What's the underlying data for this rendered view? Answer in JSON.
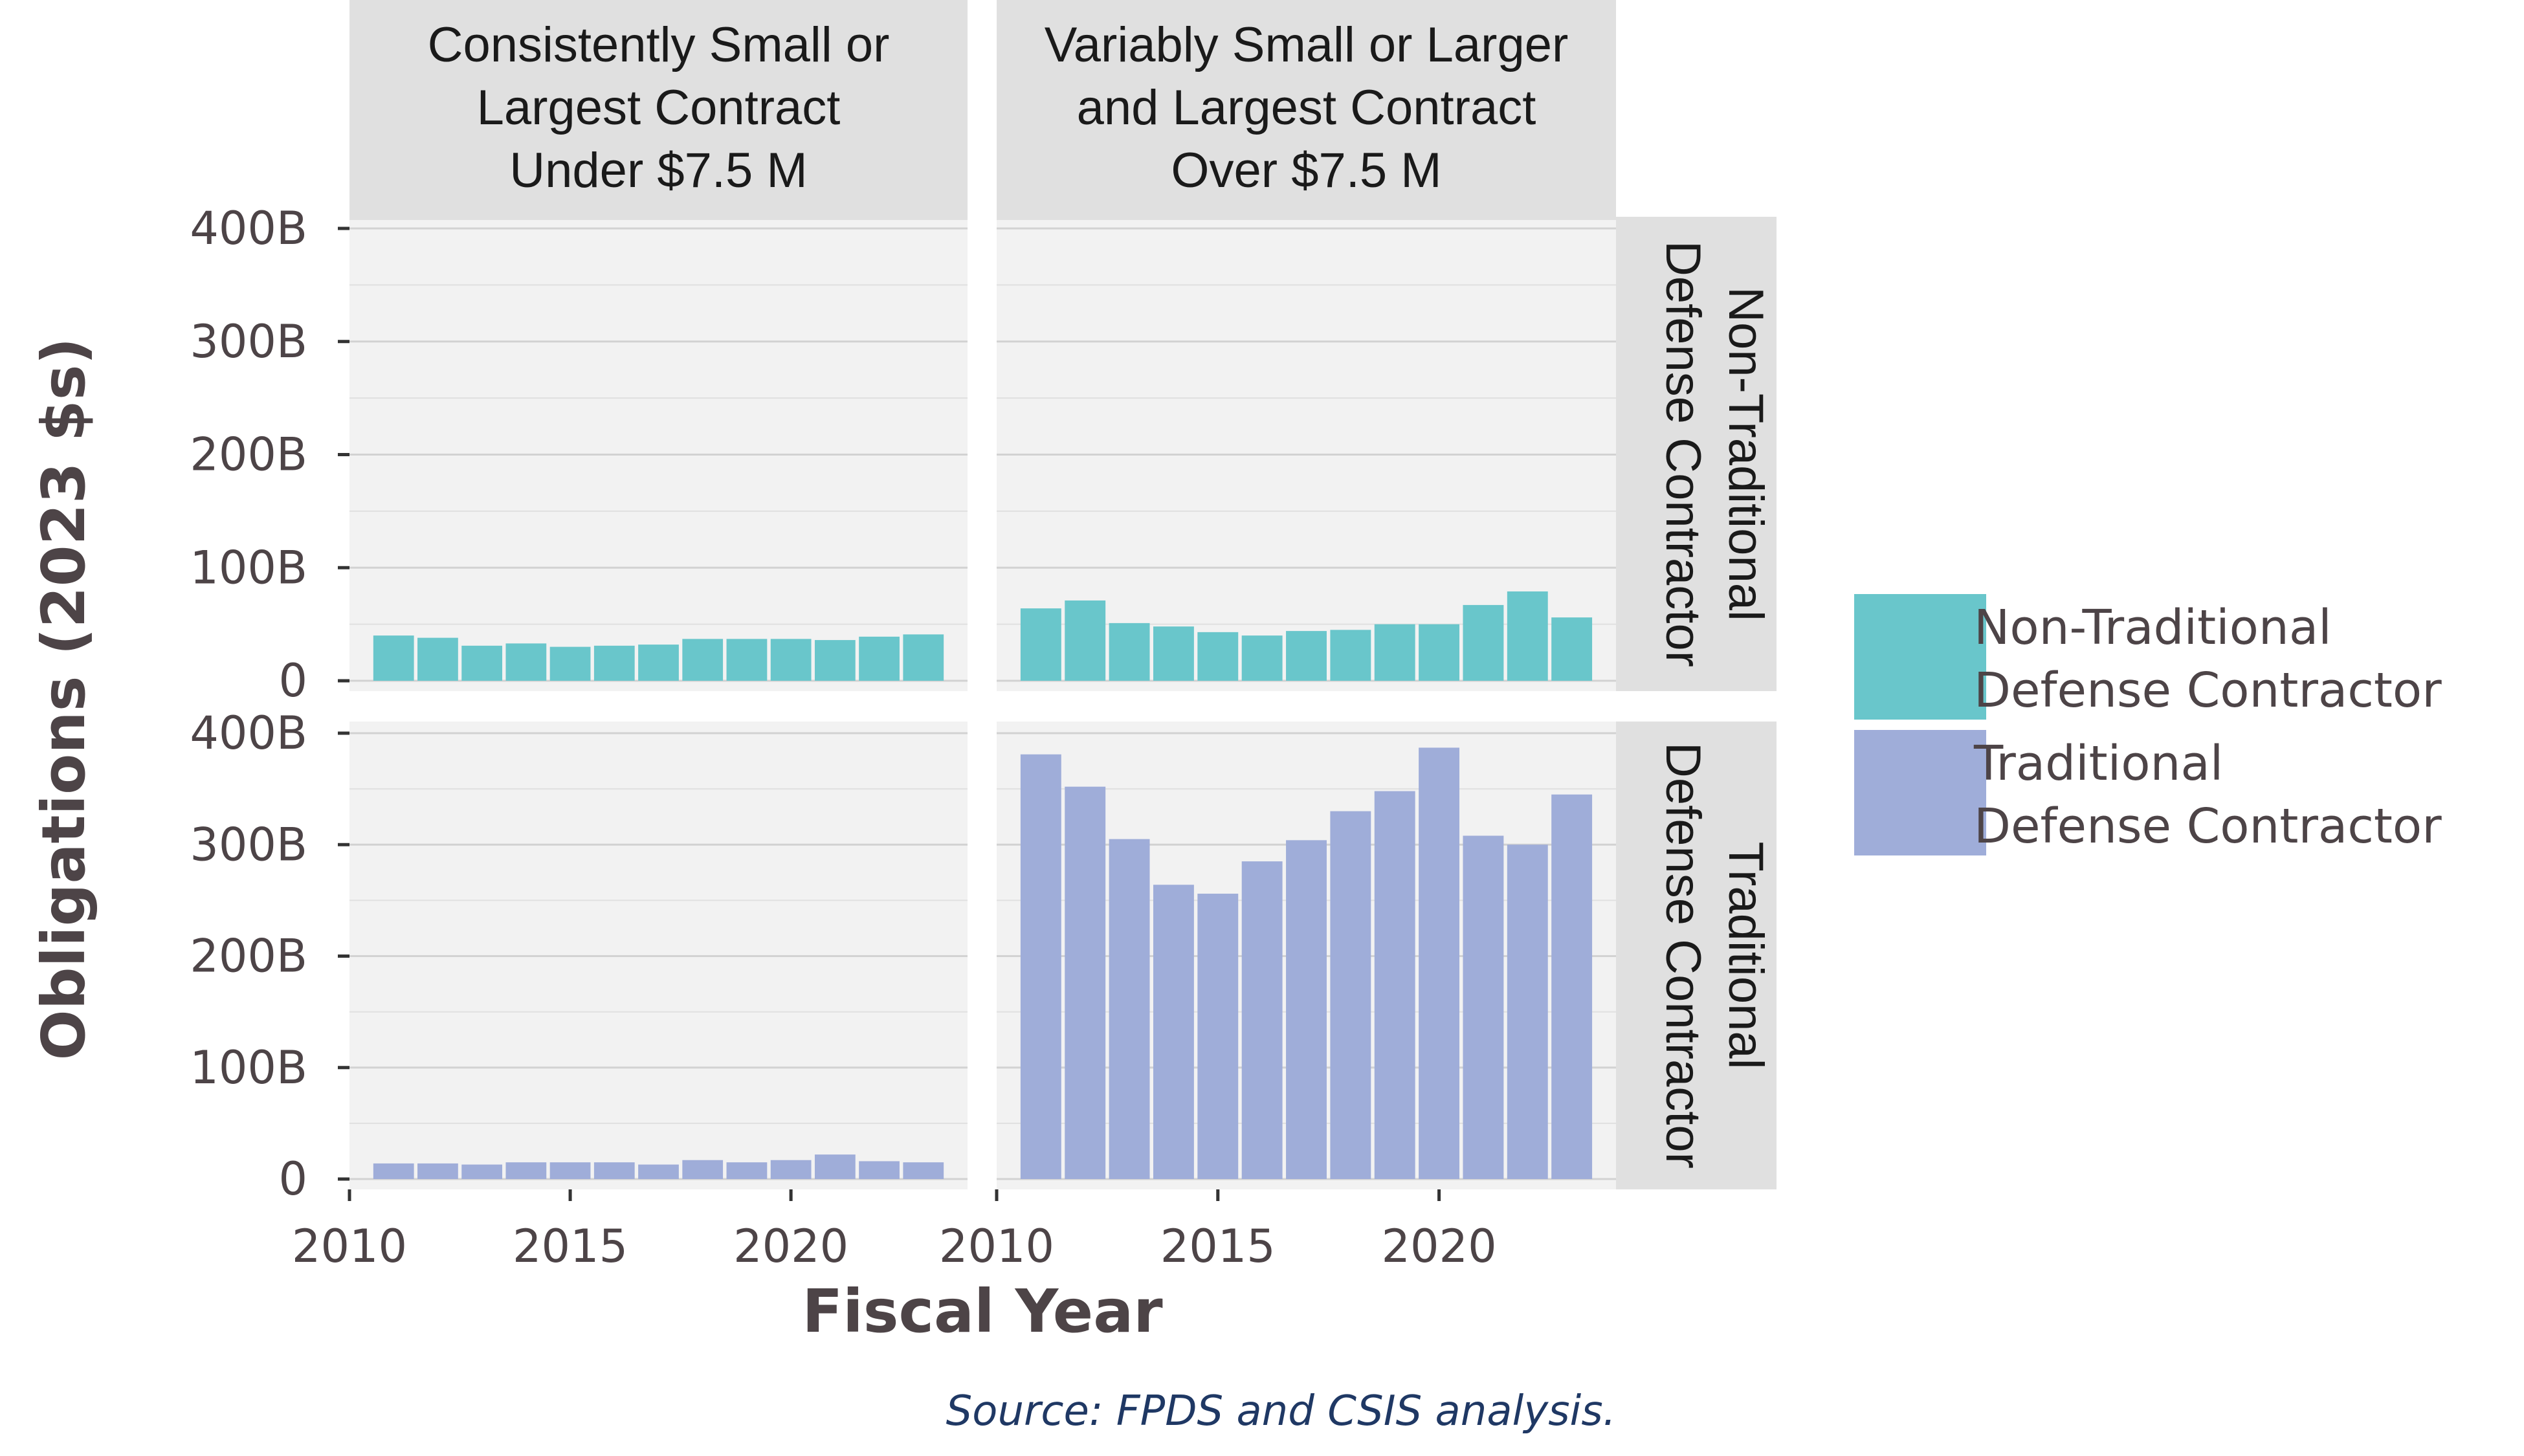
{
  "chart_data": {
    "type": "bar",
    "facet_columns": [
      {
        "lines": [
          "Consistently Small or",
          "Largest Contract",
          "Under $7.5 M"
        ]
      },
      {
        "lines": [
          "Variably Small or Larger",
          "and Largest Contract",
          "Over $7.5 M"
        ]
      }
    ],
    "facet_rows": [
      {
        "lines": [
          "Non-Traditional",
          "Defense Contractor"
        ],
        "color": "#69c6cb"
      },
      {
        "lines": [
          "Traditional",
          "Defense Contractor"
        ],
        "color": "#9fadd9"
      }
    ],
    "x": [
      2011,
      2012,
      2013,
      2014,
      2015,
      2016,
      2017,
      2018,
      2019,
      2020,
      2021,
      2022,
      2023
    ],
    "panels": [
      {
        "row": 0,
        "col": 0,
        "values": [
          40,
          38,
          31,
          33,
          30,
          31,
          32,
          37,
          37,
          37,
          36,
          39,
          41
        ]
      },
      {
        "row": 0,
        "col": 1,
        "values": [
          64,
          71,
          51,
          48,
          43,
          40,
          44,
          45,
          50,
          50,
          67,
          79,
          56
        ]
      },
      {
        "row": 1,
        "col": 0,
        "values": [
          14,
          14,
          13,
          15,
          15,
          15,
          13,
          17,
          15,
          17,
          22,
          16,
          15
        ]
      },
      {
        "row": 1,
        "col": 1,
        "values": [
          381,
          352,
          305,
          264,
          256,
          285,
          304,
          330,
          348,
          387,
          308,
          300,
          345
        ]
      }
    ],
    "xlim": [
      2010,
      2024
    ],
    "xticks": [
      "2010",
      "2015",
      "2020"
    ],
    "xtick_values": [
      2010,
      2015,
      2020
    ],
    "ylim": [
      0,
      400
    ],
    "yticks": [
      "0",
      "100B",
      "200B",
      "300B",
      "400B"
    ],
    "ytick_values": [
      0,
      100,
      200,
      300,
      400
    ],
    "xlabel": "Fiscal Year",
    "ylabel": "Obligations (2023 $s)",
    "legend": {
      "position": "right",
      "items": [
        {
          "lines": [
            "Non-Traditional",
            "Defense Contractor"
          ],
          "color": "#69c6cb"
        },
        {
          "lines": [
            "Traditional",
            "Defense Contractor"
          ],
          "color": "#9fadd9"
        }
      ]
    },
    "caption": "Source: FPDS and CSIS analysis.",
    "grid": true
  }
}
